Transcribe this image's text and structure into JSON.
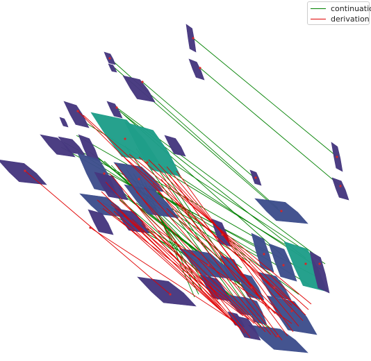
{
  "legend": {
    "items": [
      {
        "label": "continuation",
        "color": "#008000"
      },
      {
        "label": "derivation",
        "color": "#e00000"
      }
    ]
  },
  "colors": {
    "shape_purple": "#46387f",
    "shape_blue": "#3e4e8c",
    "shape_teal": "#1f9e89",
    "dot_red": "#d62728"
  }
}
